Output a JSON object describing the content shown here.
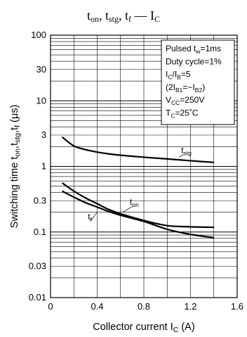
{
  "chart_data": {
    "type": "line",
    "title": {
      "parts": [
        {
          "base": "t",
          "sub": "on"
        },
        {
          "sep": ", "
        },
        {
          "base": "t",
          "sub": "stg"
        },
        {
          "sep": ", "
        },
        {
          "base": "t",
          "sub": "f"
        },
        {
          "sep": " — "
        },
        {
          "base": "I",
          "sub": "C"
        }
      ]
    },
    "xlabel": {
      "text": "Collector current",
      "symbol": "I",
      "sub": "C",
      "unit": "(A)"
    },
    "ylabel": {
      "text": "Switching time",
      "symbols": "t",
      "subs": [
        "on",
        "stg",
        "f"
      ],
      "unit": "(μs)"
    },
    "xlim": [
      0,
      1.6
    ],
    "ylim": [
      0.01,
      100
    ],
    "yscale": "log",
    "x_ticks": [
      0,
      0.4,
      0.8,
      1.2,
      1.6
    ],
    "x_tick_labels": [
      "0",
      "0.4",
      "0.8",
      "1.2",
      "1.6"
    ],
    "y_ticks": [
      0.01,
      0.03,
      0.1,
      0.3,
      1,
      3,
      10,
      30,
      100
    ],
    "y_tick_labels": [
      "0.01",
      "0.03",
      "0.1",
      "0.3",
      "1",
      "3",
      "10",
      "30",
      "100"
    ],
    "grid": true,
    "conditions": [
      {
        "text": "Pulsed t",
        "sub": "w",
        "after": "=1ms"
      },
      {
        "text": "Duty cycle=1%"
      },
      {
        "text": "I",
        "sub": "C",
        "after": "/I",
        "sub2": "B",
        "after2": "=5"
      },
      {
        "text": "(2I",
        "sub": "B1",
        "after": "=−I",
        "sub2": "B2",
        "after2": ")"
      },
      {
        "text": "V",
        "sub": "CC",
        "after": "=250V"
      },
      {
        "text": "T",
        "sub": "C",
        "after": "=25˚C"
      }
    ],
    "series": [
      {
        "name": "t",
        "sub": "stg",
        "x": [
          0.1,
          0.2,
          0.3,
          0.4,
          0.5,
          0.6,
          0.8,
          1.0,
          1.2,
          1.4
        ],
        "y": [
          2.8,
          2.05,
          1.8,
          1.65,
          1.55,
          1.48,
          1.38,
          1.3,
          1.22,
          1.15
        ]
      },
      {
        "name": "t",
        "sub": "on",
        "x": [
          0.1,
          0.2,
          0.3,
          0.4,
          0.5,
          0.6,
          0.8,
          1.0,
          1.2,
          1.4
        ],
        "y": [
          0.56,
          0.42,
          0.33,
          0.27,
          0.22,
          0.19,
          0.15,
          0.125,
          0.12,
          0.118
        ]
      },
      {
        "name": "t",
        "sub": "f",
        "x": [
          0.1,
          0.2,
          0.3,
          0.4,
          0.5,
          0.6,
          0.8,
          1.0,
          1.2,
          1.4
        ],
        "y": [
          0.42,
          0.34,
          0.28,
          0.24,
          0.205,
          0.18,
          0.145,
          0.11,
          0.092,
          0.082
        ]
      }
    ]
  }
}
